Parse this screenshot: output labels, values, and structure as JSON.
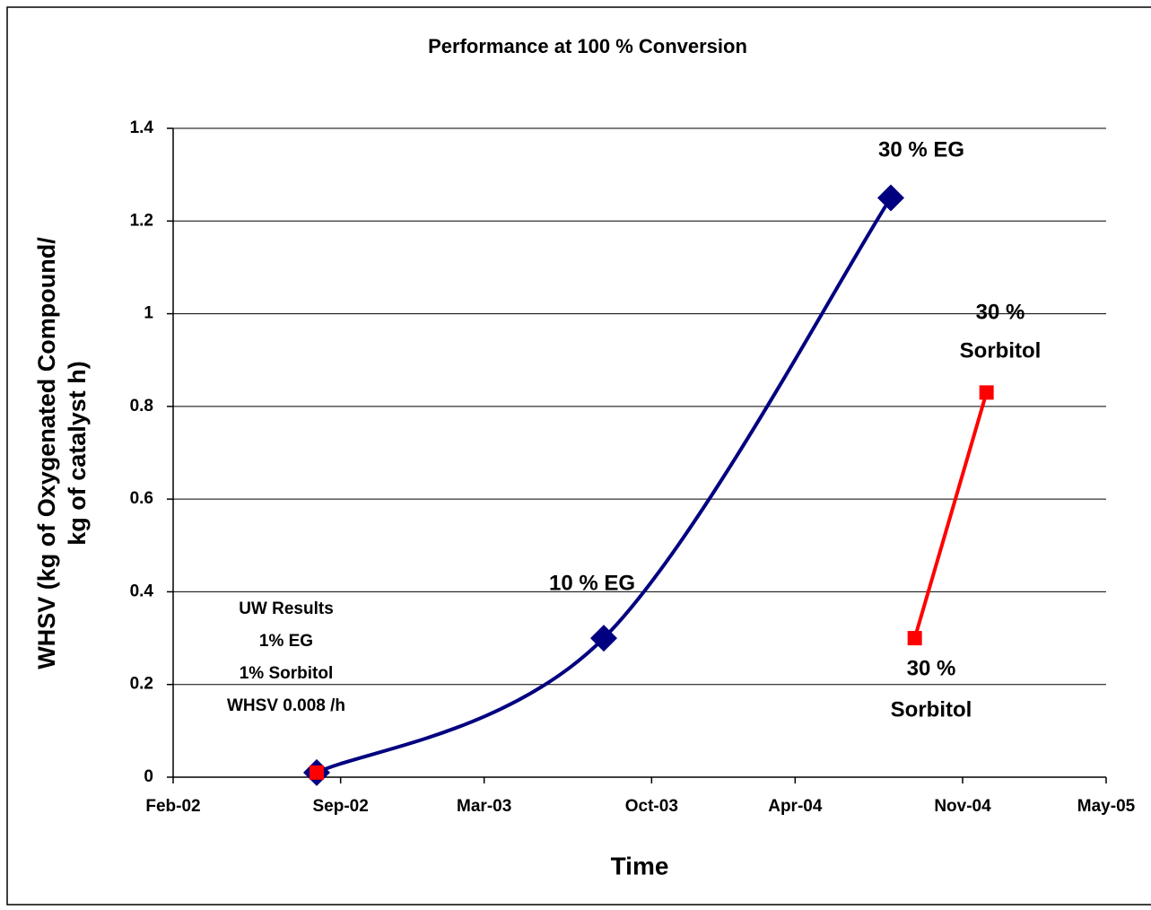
{
  "chart_data": {
    "type": "line",
    "title": "Performance at 100 % Conversion",
    "xlabel": "Time",
    "ylabel": [
      "WHSV (kg of Oxygenated Compound/",
      "kg of catalyst h)"
    ],
    "xlim": [
      "2002-02",
      "2005-05"
    ],
    "xticks": [
      {
        "value": "2002-02",
        "label": "Feb-02"
      },
      {
        "value": "2002-09",
        "label": "Sep-02"
      },
      {
        "value": "2003-03",
        "label": "Mar-03"
      },
      {
        "value": "2003-10",
        "label": "Oct-03"
      },
      {
        "value": "2004-04",
        "label": "Apr-04"
      },
      {
        "value": "2004-11",
        "label": "Nov-04"
      },
      {
        "value": "2005-05",
        "label": "May-05"
      }
    ],
    "ylim": [
      0,
      1.4
    ],
    "yticks": [
      0,
      0.2,
      0.4,
      0.6,
      0.8,
      1,
      1.2,
      1.4
    ],
    "grid": true,
    "series": [
      {
        "color": "#000080",
        "marker": "diamond",
        "smooth": true,
        "x": [
          "2002-08",
          "2003-08",
          "2004-08"
        ],
        "values": [
          0.01,
          0.3,
          1.25
        ]
      },
      {
        "color": "#ff0000",
        "marker": "square",
        "smooth": false,
        "x": [
          "2002-08",
          "2003-08",
          "2004-09",
          "2004-12"
        ],
        "values": [
          0.01,
          null,
          0.3,
          0.83
        ]
      }
    ],
    "annotations": [
      {
        "lines": [
          "30 % EG"
        ]
      },
      {
        "lines": [
          "10 % EG"
        ]
      },
      {
        "lines": [
          "30 %",
          "Sorbitol"
        ]
      },
      {
        "lines": [
          "30 %",
          "Sorbitol"
        ]
      },
      {
        "lines": [
          "UW Results",
          "1% EG",
          "1% Sorbitol",
          "WHSV 0.008 /h"
        ]
      }
    ]
  }
}
